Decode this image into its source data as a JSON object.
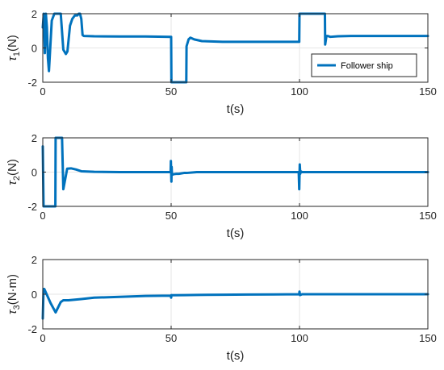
{
  "colors": {
    "series": "#0072BD",
    "axis": "#262626",
    "grid": "#e6e6e6"
  },
  "chart_data": [
    {
      "type": "line",
      "ylabel": "τ1(N)",
      "ylabel_sym": "τ",
      "ylabel_sub": "1",
      "ylabel_unit": "(N)",
      "xlabel": "t(s)",
      "xlim": [
        0,
        150
      ],
      "ylim": [
        -2,
        2
      ],
      "xticks": [
        "0",
        "50",
        "100",
        "150"
      ],
      "yticks": [
        "-2",
        "0",
        "2"
      ],
      "grid": true,
      "legend": {
        "entries": [
          "Follower ship"
        ],
        "placement": "bottom-right"
      },
      "series": [
        {
          "name": "Follower ship",
          "x": [
            0,
            0.4,
            0.8,
            1.2,
            1.6,
            2.0,
            2.4,
            3.5,
            4.5,
            6.0,
            7.0,
            8.0,
            9.0,
            9.6,
            10.6,
            11.5,
            12.5,
            13.5,
            14.0,
            14.5,
            15.0,
            15.5,
            16,
            20,
            30,
            40,
            50,
            50.1,
            52,
            54,
            55.9,
            56,
            56.8,
            57.5,
            59,
            62,
            70,
            80,
            90,
            99.9,
            100,
            105,
            109.9,
            110,
            110.5,
            111,
            112,
            115,
            120,
            130,
            140,
            150
          ],
          "values": [
            1.2,
            2.0,
            -0.3,
            2.0,
            1.2,
            -0.6,
            -1.35,
            1.6,
            2.0,
            2.0,
            2.0,
            -0.1,
            -0.35,
            -0.2,
            1.3,
            1.7,
            1.9,
            1.9,
            2.0,
            2.0,
            1.7,
            0.75,
            0.7,
            0.68,
            0.67,
            0.67,
            0.65,
            -2.0,
            -2.0,
            -2.0,
            -2.0,
            0.1,
            0.5,
            0.6,
            0.5,
            0.4,
            0.36,
            0.36,
            0.36,
            0.36,
            2.0,
            2.0,
            2.0,
            0.2,
            0.7,
            0.7,
            0.65,
            0.68,
            0.7,
            0.7,
            0.7,
            0.7
          ]
        }
      ]
    },
    {
      "type": "line",
      "ylabel": "τ2(N)",
      "ylabel_sym": "τ",
      "ylabel_sub": "2",
      "ylabel_unit": "(N)",
      "xlabel": "t(s)",
      "xlim": [
        0,
        150
      ],
      "ylim": [
        -2,
        2
      ],
      "xticks": [
        "0",
        "50",
        "100",
        "150"
      ],
      "yticks": [
        "-2",
        "0",
        "2"
      ],
      "grid": true,
      "series": [
        {
          "x": [
            0,
            0.3,
            4.9,
            5.0,
            6.0,
            7.0,
            7.5,
            8.0,
            9.5,
            11,
            13,
            15,
            20,
            30,
            49.8,
            49.9,
            50.1,
            50.2,
            50.3,
            50.5,
            51,
            52,
            53,
            55,
            56,
            60,
            70,
            80,
            90,
            99.7,
            99.9,
            100.1,
            100.3,
            100.5,
            101,
            102,
            110,
            120,
            130,
            140,
            150
          ],
          "values": [
            1.5,
            -2.0,
            -2.0,
            2.0,
            2.0,
            2.0,
            2.0,
            -1.0,
            0.2,
            0.22,
            0.15,
            0.05,
            0.02,
            0.0,
            0.0,
            0.65,
            -0.55,
            0.3,
            -0.1,
            -0.15,
            -0.12,
            -0.1,
            -0.1,
            -0.05,
            -0.05,
            0.0,
            0.0,
            0.0,
            0.0,
            0.0,
            -1.0,
            0.45,
            -0.1,
            0.05,
            0.0,
            0.0,
            0.0,
            0.0,
            0.0,
            0.0,
            0.0
          ]
        }
      ]
    },
    {
      "type": "line",
      "ylabel": "τ3(N·m)",
      "ylabel_sym": "τ",
      "ylabel_sub": "3",
      "ylabel_unit": "(N·m)",
      "xlabel": "t(s)",
      "xlim": [
        0,
        150
      ],
      "ylim": [
        -2,
        2
      ],
      "xticks": [
        "0",
        "50",
        "100",
        "150"
      ],
      "yticks": [
        "-2",
        "0",
        "2"
      ],
      "grid": true,
      "series": [
        {
          "x": [
            0,
            0.3,
            0.6,
            1.5,
            3,
            5,
            7,
            8,
            10,
            15,
            20,
            30,
            40,
            49.9,
            50.0,
            50.1,
            50.5,
            55,
            60,
            70,
            80,
            90,
            99.9,
            100.0,
            100.2,
            101,
            110,
            120,
            150
          ],
          "values": [
            -1.4,
            0.3,
            0.3,
            0.0,
            -0.5,
            -1.05,
            -0.45,
            -0.35,
            -0.35,
            -0.28,
            -0.2,
            -0.15,
            -0.1,
            -0.08,
            -0.2,
            -0.05,
            -0.06,
            -0.05,
            -0.04,
            -0.03,
            -0.02,
            -0.01,
            0.0,
            0.15,
            -0.05,
            0.0,
            0.0,
            0.0,
            0.0
          ]
        }
      ]
    }
  ]
}
